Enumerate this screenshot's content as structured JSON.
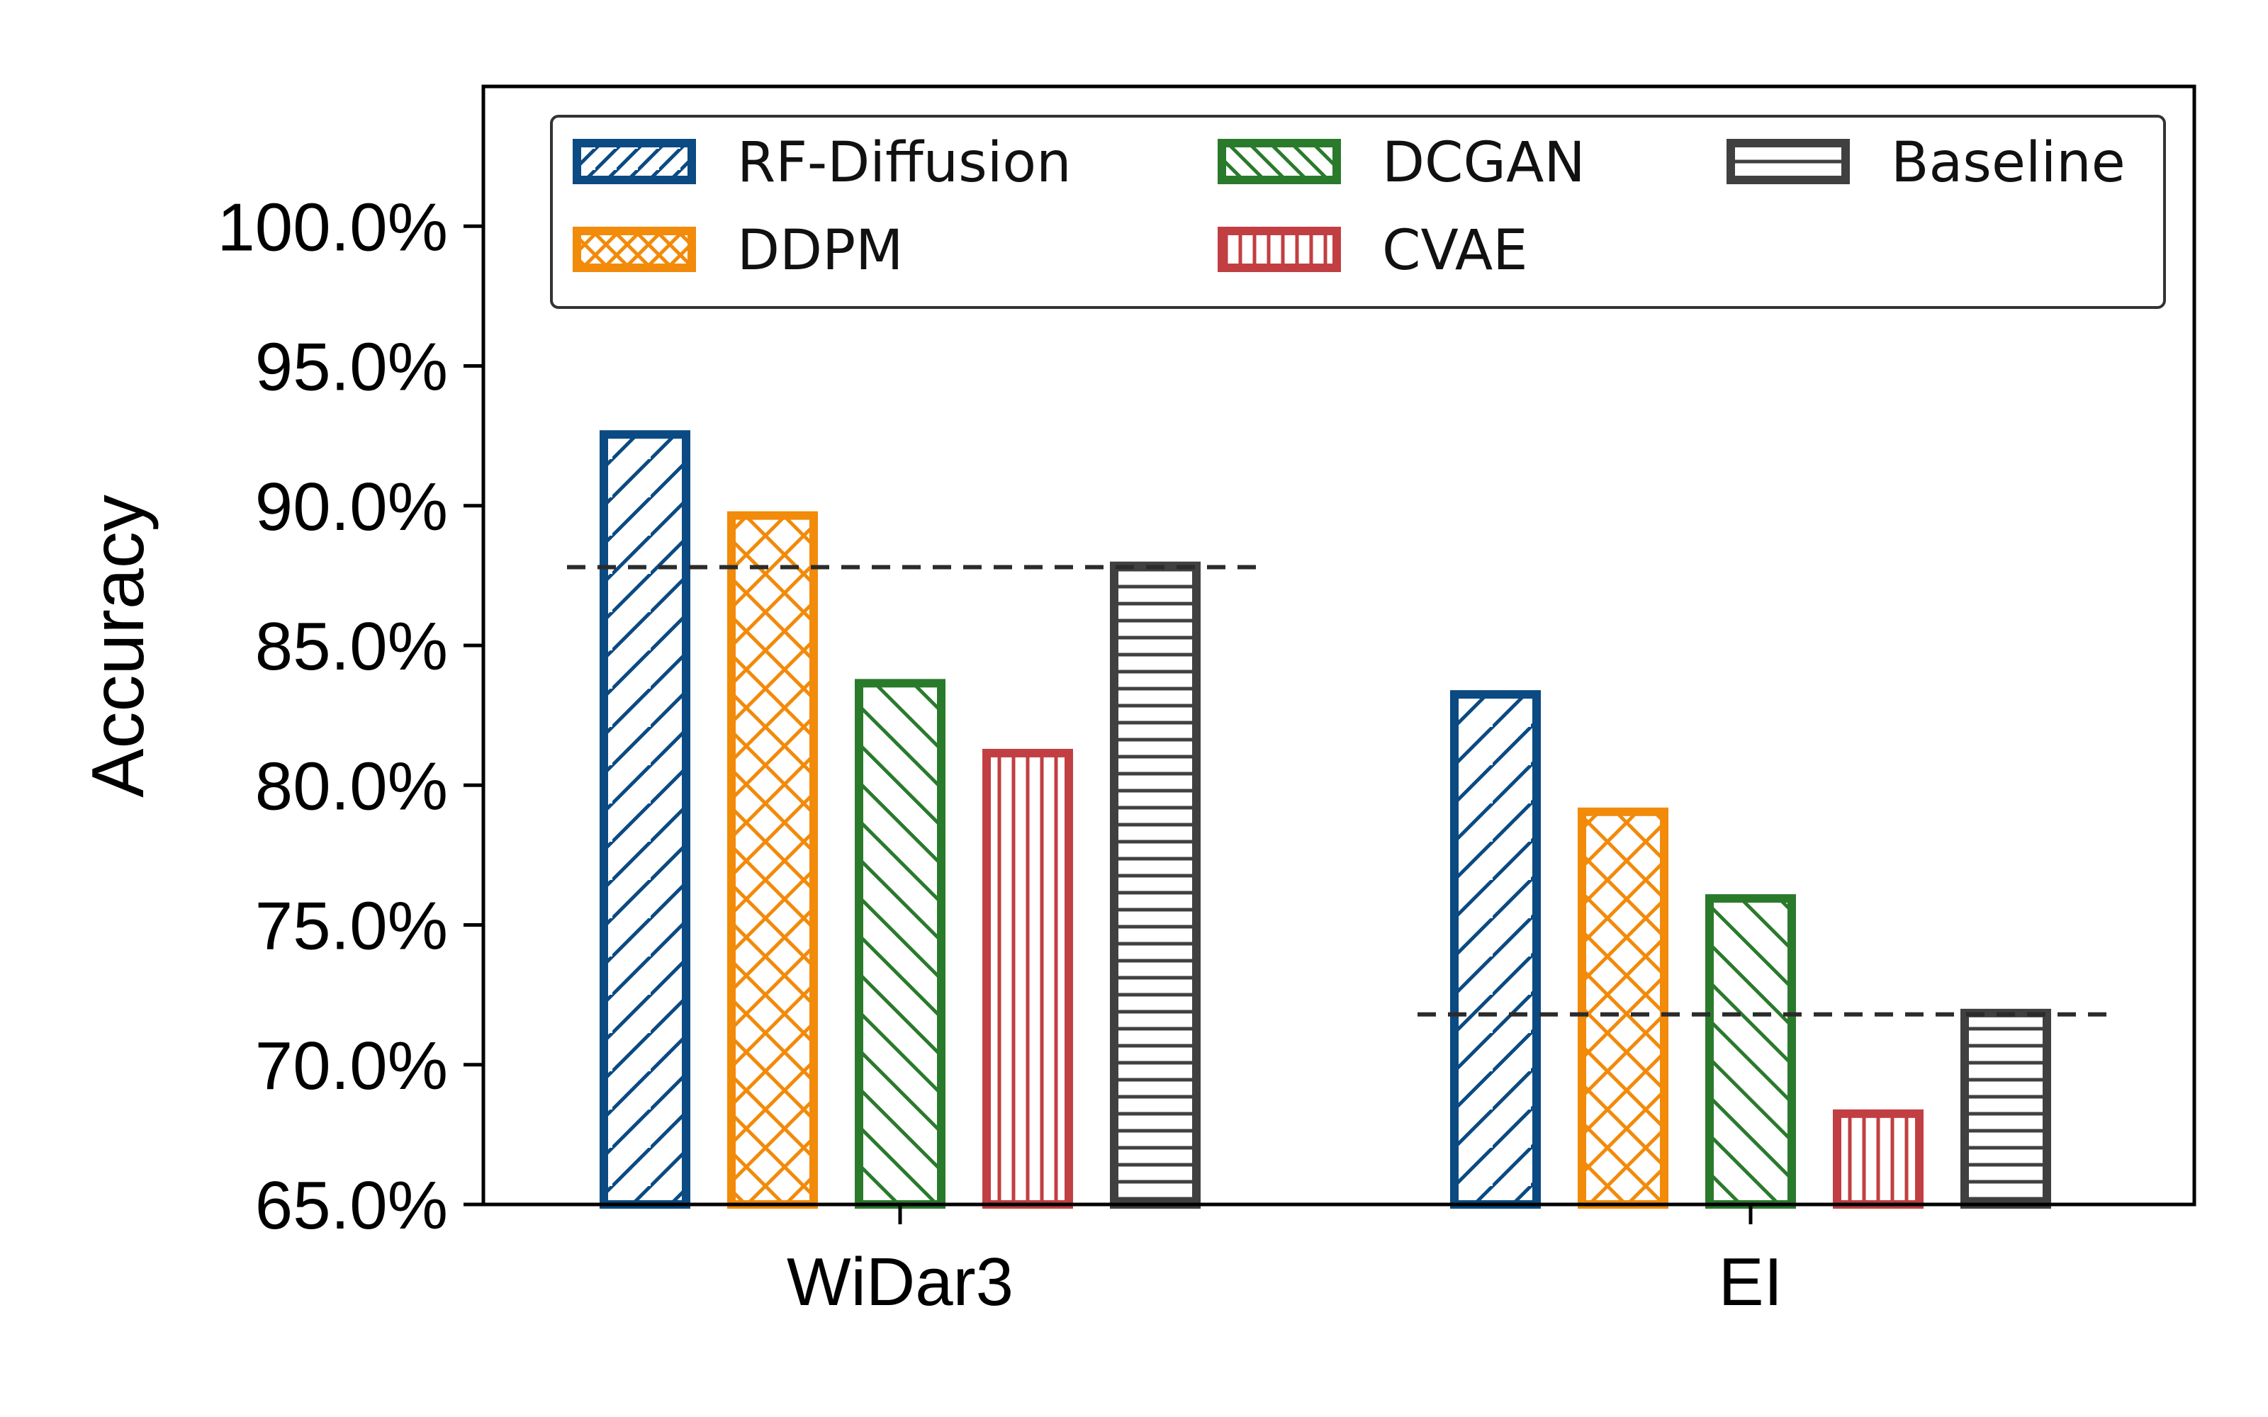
{
  "chart_data": {
    "type": "bar",
    "title": "",
    "xlabel": "",
    "ylabel": "Accuracy",
    "ylim": [
      65,
      105
    ],
    "yticks": [
      65,
      70,
      75,
      80,
      85,
      90,
      95,
      100
    ],
    "ytick_labels": [
      "65.0%",
      "70.0%",
      "75.0%",
      "80.0%",
      "85.0%",
      "90.0%",
      "95.0%",
      "100.0%"
    ],
    "categories": [
      "WiDar3",
      "EI"
    ],
    "series": [
      {
        "name": "RF-Diffusion",
        "values": [
          92.7,
          83.4
        ],
        "color": "#0b4a82",
        "hatch": "diagonal-forward"
      },
      {
        "name": "DDPM",
        "values": [
          89.8,
          79.2
        ],
        "color": "#f28a0a",
        "hatch": "crosshatch"
      },
      {
        "name": "DCGAN",
        "values": [
          83.8,
          76.1
        ],
        "color": "#2a7a2c",
        "hatch": "diagonal-back"
      },
      {
        "name": "CVAE",
        "values": [
          81.3,
          68.4
        ],
        "color": "#c13f42",
        "hatch": "vertical"
      },
      {
        "name": "Baseline",
        "values": [
          88.0,
          72.0
        ],
        "color": "#404040",
        "hatch": "horizontal"
      }
    ],
    "reference_lines": [
      {
        "category": "WiDar3",
        "value": 87.8,
        "style": "dashed"
      },
      {
        "category": "EI",
        "value": 71.8,
        "style": "dashed"
      }
    ],
    "legend": {
      "position": "top",
      "columns": 3
    },
    "grid": false
  }
}
